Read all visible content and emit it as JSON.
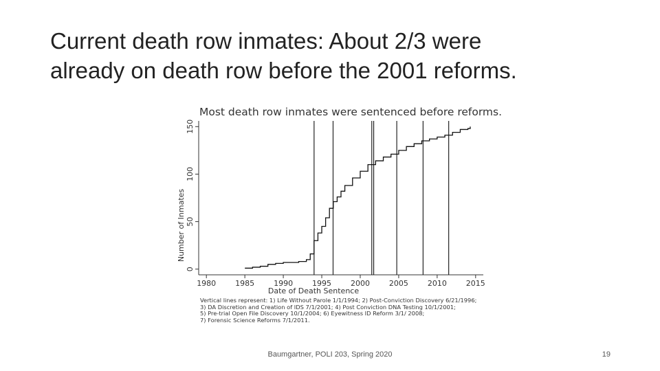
{
  "slide": {
    "title_line1": "Current death row inmates: About 2/3 were",
    "title_line2": "already on death row before the 2001 reforms.",
    "footer": "Baumgartner, POLI 203, Spring 2020",
    "page_number": "19"
  },
  "chart_data": {
    "type": "line",
    "title": "Most death row inmates were sentenced before reforms.",
    "xlabel": "Date of Death Sentence",
    "ylabel": "Number of Inmates",
    "xlim": [
      1979,
      2016
    ],
    "ylim": [
      -6,
      156
    ],
    "xticks": [
      1980,
      1985,
      1990,
      1995,
      2000,
      2005,
      2010,
      2015
    ],
    "yticks": [
      0,
      50,
      100,
      150
    ],
    "grid": false,
    "series": [
      {
        "x": [
          1985,
          1986,
          1987,
          1988,
          1989,
          1990,
          1991,
          1992,
          1993,
          1993.5,
          1994,
          1994.5,
          1995,
          1995.5,
          1996,
          1996.5,
          1997,
          1997.5,
          1998,
          1999,
          2000,
          2001,
          2002,
          2003,
          2004,
          2005,
          2006,
          2007,
          2008,
          2009,
          2010,
          2011,
          2012,
          2013,
          2014,
          2014.3
        ],
        "y": [
          1,
          2,
          3,
          5,
          6,
          7,
          7,
          8,
          10,
          16,
          30,
          38,
          45,
          54,
          64,
          71,
          76,
          82,
          88,
          96,
          103,
          110,
          114,
          118,
          121,
          125,
          129,
          132,
          135,
          137,
          139,
          141,
          144,
          147,
          148,
          150
        ]
      }
    ],
    "vertical_lines": [
      {
        "x": 1994.0,
        "label": "Life Without Parole 1/1/1994"
      },
      {
        "x": 1996.47,
        "label": "Post-Conviction Discovery 6/21/1996"
      },
      {
        "x": 2001.5,
        "label": "DA Discretion and Creation of IDS 7/1/2001"
      },
      {
        "x": 2001.75,
        "label": "Post Conviction DNA Testing 10/1/2001"
      },
      {
        "x": 2004.75,
        "label": "Pre-trial Open File Discovery 10/1/2004"
      },
      {
        "x": 2008.17,
        "label": "Eyewitness ID Reform 3/1/ 2008"
      },
      {
        "x": 2011.5,
        "label": "Forensic Science Reforms 7/1/2011"
      }
    ],
    "notes": [
      "Vertical lines represent: 1) Life Without Parole 1/1/1994; 2) Post-Conviction Discovery 6/21/1996;",
      "3) DA Discretion and Creation of IDS 7/1/2001; 4) Post Conviction DNA Testing 10/1/2001;",
      "5) Pre-trial Open File Discovery 10/1/2004; 6) Eyewitness ID Reform 3/1/ 2008;",
      "7) Forensic Science Reforms 7/1/2011."
    ]
  }
}
